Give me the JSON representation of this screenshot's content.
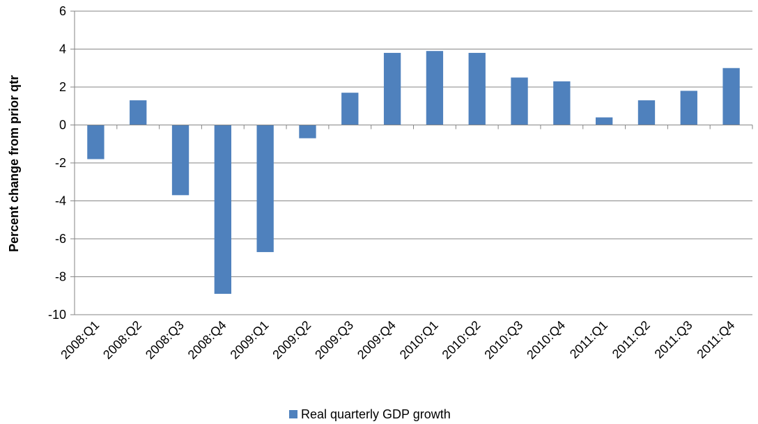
{
  "chart_data": {
    "type": "bar",
    "categories": [
      "2008:Q1",
      "2008:Q2",
      "2008:Q3",
      "2008:Q4",
      "2009:Q1",
      "2009:Q2",
      "2009:Q3",
      "2009:Q4",
      "2010:Q1",
      "2010:Q2",
      "2010:Q3",
      "2010:Q4",
      "2011:Q1",
      "2011:Q2",
      "2011:Q3",
      "2011:Q4"
    ],
    "series": [
      {
        "name": "Real quarterly GDP growth",
        "values": [
          -1.8,
          1.3,
          -3.7,
          -8.9,
          -6.7,
          -0.7,
          1.7,
          3.8,
          3.9,
          3.8,
          2.5,
          2.3,
          0.4,
          1.3,
          1.8,
          3.0
        ],
        "color": "#4f81bd"
      }
    ],
    "ylabel": "Percent change from prior qtr",
    "ylim": [
      -10,
      6
    ],
    "yticks": [
      -10,
      -8,
      -6,
      -4,
      -2,
      0,
      2,
      4,
      6
    ],
    "grid": true,
    "legend_position": "bottom"
  }
}
